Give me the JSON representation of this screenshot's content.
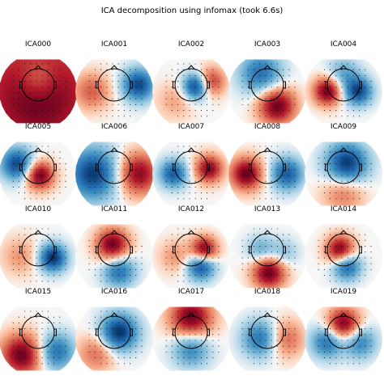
{
  "chart_data": {
    "type": "heatmap",
    "title": "ICA decomposition using infomax (took 6.6s)",
    "colormap": "RdBu_r",
    "rows": 4,
    "cols": 5,
    "components": [
      {
        "name": "ICA000",
        "blobs": [
          {
            "x": 0.0,
            "y": -0.2,
            "a": 1.0,
            "r": 1.6
          },
          {
            "x": 0.0,
            "y": 0.4,
            "a": -0.35,
            "r": 0.4
          }
        ]
      },
      {
        "name": "ICA001",
        "blobs": [
          {
            "x": 0.75,
            "y": 0.2,
            "a": -0.9,
            "r": 0.35
          },
          {
            "x": -0.7,
            "y": 0.0,
            "a": 0.5,
            "r": 0.4
          }
        ]
      },
      {
        "name": "ICA002",
        "blobs": [
          {
            "x": 0.15,
            "y": 0.15,
            "a": -1.0,
            "r": 0.28
          },
          {
            "x": 0.6,
            "y": 0.3,
            "a": 0.7,
            "r": 0.3
          },
          {
            "x": -0.5,
            "y": -0.3,
            "a": 0.25,
            "r": 0.4
          }
        ]
      },
      {
        "name": "ICA003",
        "blobs": [
          {
            "x": 0.3,
            "y": -0.45,
            "a": 1.0,
            "r": 0.4
          },
          {
            "x": -0.2,
            "y": 0.55,
            "a": -0.7,
            "r": 0.45
          }
        ]
      },
      {
        "name": "ICA004",
        "blobs": [
          {
            "x": -0.5,
            "y": 0.0,
            "a": 1.0,
            "r": 0.3
          },
          {
            "x": 0.45,
            "y": 0.0,
            "a": -0.9,
            "r": 0.3
          },
          {
            "x": 0.0,
            "y": 0.55,
            "a": -0.4,
            "r": 0.35
          }
        ]
      },
      {
        "name": "ICA005",
        "blobs": [
          {
            "x": -0.65,
            "y": 0.3,
            "a": -0.9,
            "r": 0.35
          },
          {
            "x": 0.05,
            "y": -0.05,
            "a": 1.0,
            "r": 0.3
          }
        ]
      },
      {
        "name": "ICA006",
        "blobs": [
          {
            "x": -0.65,
            "y": 0.0,
            "a": -0.95,
            "r": 0.55
          },
          {
            "x": 0.75,
            "y": 0.0,
            "a": 0.9,
            "r": 0.45
          }
        ]
      },
      {
        "name": "ICA007",
        "blobs": [
          {
            "x": -0.55,
            "y": 0.0,
            "a": -0.8,
            "r": 0.3
          },
          {
            "x": 0.55,
            "y": 0.15,
            "a": 0.9,
            "r": 0.3
          }
        ]
      },
      {
        "name": "ICA008",
        "blobs": [
          {
            "x": -0.65,
            "y": 0.0,
            "a": 1.0,
            "r": 0.35
          },
          {
            "x": 0.6,
            "y": 0.0,
            "a": -0.8,
            "r": 0.35
          }
        ]
      },
      {
        "name": "ICA009",
        "blobs": [
          {
            "x": 0.1,
            "y": 0.3,
            "a": -1.0,
            "r": 0.45
          },
          {
            "x": 0.0,
            "y": -0.55,
            "a": 0.45,
            "r": 0.45
          }
        ]
      },
      {
        "name": "ICA010",
        "blobs": [
          {
            "x": 0.45,
            "y": -0.05,
            "a": -1.0,
            "r": 0.3
          },
          {
            "x": -0.55,
            "y": 0.0,
            "a": 0.3,
            "r": 0.4
          }
        ]
      },
      {
        "name": "ICA011",
        "blobs": [
          {
            "x": -0.05,
            "y": 0.35,
            "a": 1.0,
            "r": 0.35
          },
          {
            "x": 0.15,
            "y": -0.45,
            "a": -0.7,
            "r": 0.35
          }
        ]
      },
      {
        "name": "ICA012",
        "blobs": [
          {
            "x": 0.4,
            "y": 0.2,
            "a": 1.0,
            "r": 0.28
          },
          {
            "x": 0.3,
            "y": -0.3,
            "a": -0.9,
            "r": 0.3
          },
          {
            "x": -0.5,
            "y": 0.0,
            "a": 0.3,
            "r": 0.35
          }
        ]
      },
      {
        "name": "ICA013",
        "blobs": [
          {
            "x": 0.05,
            "y": -0.5,
            "a": 1.0,
            "r": 0.35
          },
          {
            "x": -0.2,
            "y": 0.2,
            "a": -0.4,
            "r": 0.3
          },
          {
            "x": 0.5,
            "y": 0.1,
            "a": -0.3,
            "r": 0.3
          }
        ]
      },
      {
        "name": "ICA014",
        "blobs": [
          {
            "x": -0.1,
            "y": 0.2,
            "a": 1.0,
            "r": 0.3
          },
          {
            "x": 0.1,
            "y": -0.3,
            "a": -0.8,
            "r": 0.3
          }
        ]
      },
      {
        "name": "ICA015",
        "blobs": [
          {
            "x": -0.5,
            "y": -0.5,
            "a": 1.0,
            "r": 0.45
          },
          {
            "x": 0.55,
            "y": -0.4,
            "a": -0.7,
            "r": 0.4
          }
        ]
      },
      {
        "name": "ICA016",
        "blobs": [
          {
            "x": 0.15,
            "y": 0.2,
            "a": -1.0,
            "r": 0.4
          },
          {
            "x": -0.55,
            "y": -0.45,
            "a": 0.45,
            "r": 0.4
          }
        ]
      },
      {
        "name": "ICA017",
        "blobs": [
          {
            "x": 0.0,
            "y": 0.65,
            "a": 1.0,
            "r": 0.45
          },
          {
            "x": 0.0,
            "y": -0.3,
            "a": -0.6,
            "r": 0.4
          }
        ]
      },
      {
        "name": "ICA018",
        "blobs": [
          {
            "x": -0.2,
            "y": 0.0,
            "a": -0.7,
            "r": 0.4
          },
          {
            "x": 0.55,
            "y": 0.0,
            "a": 0.5,
            "r": 0.4
          }
        ]
      },
      {
        "name": "ICA019",
        "blobs": [
          {
            "x": 0.0,
            "y": 0.45,
            "a": 1.0,
            "r": 0.35
          },
          {
            "x": -0.5,
            "y": -0.1,
            "a": -0.7,
            "r": 0.35
          },
          {
            "x": 0.5,
            "y": -0.1,
            "a": -0.6,
            "r": 0.35
          }
        ]
      }
    ]
  }
}
